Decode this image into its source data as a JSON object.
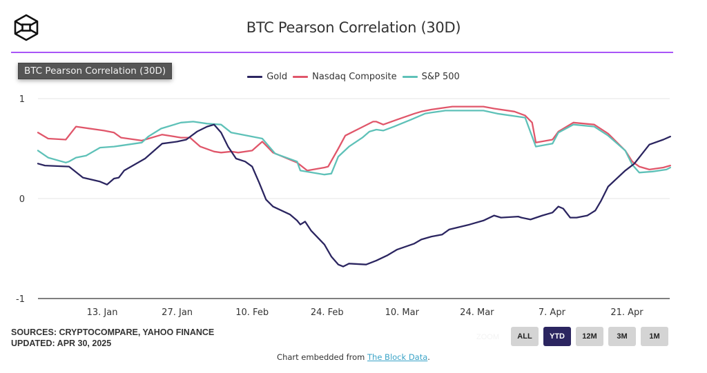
{
  "header": {
    "logo_icon": "the-block-cube-logo-icon",
    "title": "BTC Pearson Correlation (30D)",
    "tooltip_label": "BTC Pearson Correlation (30D)",
    "divider_color": "#a855f7"
  },
  "legend": [
    {
      "name": "Gold",
      "color": "#2b2560"
    },
    {
      "name": "Nasdaq Composite",
      "color": "#e0566a"
    },
    {
      "name": "S&P 500",
      "color": "#5ec1b8"
    }
  ],
  "chart_data": {
    "type": "line",
    "title": "BTC Pearson Correlation (30D)",
    "xlabel": "",
    "ylabel": "",
    "x_unit": "days since 1 Jan 2025",
    "xlim": [
      0,
      118
    ],
    "ylim": [
      -1,
      1
    ],
    "yticks": [
      {
        "value": 1,
        "label": "1"
      },
      {
        "value": 0,
        "label": "0"
      },
      {
        "value": -1,
        "label": "-1"
      }
    ],
    "xticks": [
      {
        "value": 12,
        "label": "13. Jan"
      },
      {
        "value": 26,
        "label": "27. Jan"
      },
      {
        "value": 40,
        "label": "10. Feb"
      },
      {
        "value": 54,
        "label": "24. Feb"
      },
      {
        "value": 68,
        "label": "10. Mar"
      },
      {
        "value": 82,
        "label": "24. Mar"
      },
      {
        "value": 96,
        "label": "7. Apr"
      },
      {
        "value": 110,
        "label": "21. Apr"
      }
    ],
    "grid": true,
    "legend_position": "top-center",
    "series": [
      {
        "name": "Gold",
        "color": "#2b2560",
        "points": [
          [
            0,
            0.35
          ],
          [
            1.3,
            0.33
          ],
          [
            5.8,
            0.32
          ],
          [
            8.4,
            0.21
          ],
          [
            11.6,
            0.17
          ],
          [
            12.9,
            0.14
          ],
          [
            14.2,
            0.2
          ],
          [
            15.1,
            0.21
          ],
          [
            16.1,
            0.28
          ],
          [
            20,
            0.4
          ],
          [
            23.2,
            0.55
          ],
          [
            26,
            0.57
          ],
          [
            27.7,
            0.59
          ],
          [
            29.7,
            0.67
          ],
          [
            31.6,
            0.72
          ],
          [
            32.9,
            0.74
          ],
          [
            34.2,
            0.66
          ],
          [
            35.5,
            0.52
          ],
          [
            37,
            0.4
          ],
          [
            38.7,
            0.37
          ],
          [
            40,
            0.32
          ],
          [
            41.3,
            0.16
          ],
          [
            42.6,
            -0.01
          ],
          [
            43.9,
            -0.08
          ],
          [
            47.1,
            -0.16
          ],
          [
            48.4,
            -0.22
          ],
          [
            49,
            -0.26
          ],
          [
            49.9,
            -0.23
          ],
          [
            51,
            -0.32
          ],
          [
            53.5,
            -0.46
          ],
          [
            54.8,
            -0.58
          ],
          [
            56.1,
            -0.66
          ],
          [
            57,
            -0.68
          ],
          [
            58.1,
            -0.65
          ],
          [
            61.3,
            -0.66
          ],
          [
            63.2,
            -0.62
          ],
          [
            65.2,
            -0.57
          ],
          [
            67.1,
            -0.51
          ],
          [
            70.3,
            -0.45
          ],
          [
            71.6,
            -0.41
          ],
          [
            73.5,
            -0.38
          ],
          [
            75.5,
            -0.36
          ],
          [
            76.8,
            -0.31
          ],
          [
            80.6,
            -0.26
          ],
          [
            83.2,
            -0.22
          ],
          [
            85.2,
            -0.17
          ],
          [
            86.5,
            -0.19
          ],
          [
            89.7,
            -0.18
          ],
          [
            90.3,
            -0.19
          ],
          [
            92,
            -0.21
          ],
          [
            94.2,
            -0.17
          ],
          [
            96.1,
            -0.14
          ],
          [
            97.2,
            -0.08
          ],
          [
            98.1,
            -0.1
          ],
          [
            99.4,
            -0.19
          ],
          [
            100.6,
            -0.19
          ],
          [
            102.6,
            -0.17
          ],
          [
            103.2,
            -0.15
          ],
          [
            104.1,
            -0.12
          ],
          [
            105.2,
            -0.02
          ],
          [
            106.5,
            0.12
          ],
          [
            109.7,
            0.28
          ],
          [
            111.4,
            0.35
          ],
          [
            114.2,
            0.54
          ],
          [
            116.8,
            0.59
          ],
          [
            118.1,
            0.62
          ]
        ]
      },
      {
        "name": "Nasdaq Composite",
        "color": "#e0566a",
        "points": [
          [
            0,
            0.66
          ],
          [
            1.9,
            0.6
          ],
          [
            5.2,
            0.59
          ],
          [
            7.1,
            0.72
          ],
          [
            12.3,
            0.68
          ],
          [
            14.2,
            0.66
          ],
          [
            15.5,
            0.61
          ],
          [
            19.4,
            0.58
          ],
          [
            23.2,
            0.64
          ],
          [
            26.7,
            0.61
          ],
          [
            28.4,
            0.61
          ],
          [
            30.3,
            0.52
          ],
          [
            32.9,
            0.47
          ],
          [
            34.2,
            0.46
          ],
          [
            36.1,
            0.47
          ],
          [
            37.4,
            0.46
          ],
          [
            40,
            0.48
          ],
          [
            41.9,
            0.57
          ],
          [
            43.9,
            0.46
          ],
          [
            48.4,
            0.36
          ],
          [
            50.3,
            0.28
          ],
          [
            53.5,
            0.31
          ],
          [
            54.2,
            0.32
          ],
          [
            56.1,
            0.5
          ],
          [
            57.4,
            0.63
          ],
          [
            60,
            0.7
          ],
          [
            62.6,
            0.77
          ],
          [
            63.2,
            0.77
          ],
          [
            64.5,
            0.74
          ],
          [
            67.1,
            0.79
          ],
          [
            70.3,
            0.85
          ],
          [
            71.6,
            0.87
          ],
          [
            73.5,
            0.89
          ],
          [
            76.1,
            0.91
          ],
          [
            77.4,
            0.92
          ],
          [
            83.2,
            0.92
          ],
          [
            85.2,
            0.9
          ],
          [
            89,
            0.87
          ],
          [
            91,
            0.83
          ],
          [
            92.3,
            0.76
          ],
          [
            93,
            0.56
          ],
          [
            96.1,
            0.59
          ],
          [
            97.2,
            0.67
          ],
          [
            100,
            0.76
          ],
          [
            103.9,
            0.74
          ],
          [
            106.5,
            0.65
          ],
          [
            109.7,
            0.48
          ],
          [
            111,
            0.37
          ],
          [
            112.3,
            0.32
          ],
          [
            114.2,
            0.29
          ],
          [
            116.8,
            0.31
          ],
          [
            118.1,
            0.33
          ]
        ]
      },
      {
        "name": "S&P 500",
        "color": "#5ec1b8",
        "points": [
          [
            0,
            0.48
          ],
          [
            1.9,
            0.41
          ],
          [
            5.2,
            0.36
          ],
          [
            5.8,
            0.37
          ],
          [
            7.1,
            0.41
          ],
          [
            9,
            0.43
          ],
          [
            11.6,
            0.51
          ],
          [
            14.2,
            0.52
          ],
          [
            15.5,
            0.53
          ],
          [
            19.4,
            0.56
          ],
          [
            20.6,
            0.62
          ],
          [
            23,
            0.7
          ],
          [
            26.7,
            0.76
          ],
          [
            29,
            0.77
          ],
          [
            31.6,
            0.75
          ],
          [
            34.2,
            0.74
          ],
          [
            36.1,
            0.66
          ],
          [
            38.1,
            0.64
          ],
          [
            41.9,
            0.6
          ],
          [
            44.3,
            0.45
          ],
          [
            48.4,
            0.37
          ],
          [
            49,
            0.28
          ],
          [
            53.5,
            0.24
          ],
          [
            54.8,
            0.25
          ],
          [
            56.1,
            0.42
          ],
          [
            58.1,
            0.52
          ],
          [
            60.6,
            0.61
          ],
          [
            61.9,
            0.67
          ],
          [
            63.2,
            0.69
          ],
          [
            64.5,
            0.68
          ],
          [
            66.5,
            0.72
          ],
          [
            69.7,
            0.79
          ],
          [
            72.3,
            0.85
          ],
          [
            73.5,
            0.86
          ],
          [
            76.1,
            0.88
          ],
          [
            83.2,
            0.88
          ],
          [
            85.8,
            0.85
          ],
          [
            91,
            0.81
          ],
          [
            93,
            0.52
          ],
          [
            96.1,
            0.55
          ],
          [
            97.2,
            0.66
          ],
          [
            100,
            0.74
          ],
          [
            103.9,
            0.72
          ],
          [
            106.5,
            0.63
          ],
          [
            109.7,
            0.48
          ],
          [
            111,
            0.34
          ],
          [
            112.3,
            0.26
          ],
          [
            114.8,
            0.27
          ],
          [
            117.4,
            0.29
          ],
          [
            118.1,
            0.31
          ]
        ]
      }
    ]
  },
  "footer": {
    "sources": "SOURCES: CRYPTOCOMPARE, YAHOO FINANCE",
    "updated": "UPDATED: APR 30, 2025",
    "zoom_label": "ZOOM",
    "zoom_buttons": [
      {
        "label": "ALL",
        "active": false
      },
      {
        "label": "YTD",
        "active": true
      },
      {
        "label": "12M",
        "active": false
      },
      {
        "label": "3M",
        "active": false
      },
      {
        "label": "1M",
        "active": false
      }
    ],
    "embed_prefix": "Chart embedded from ",
    "embed_link": "The Block Data",
    "embed_suffix": "."
  }
}
